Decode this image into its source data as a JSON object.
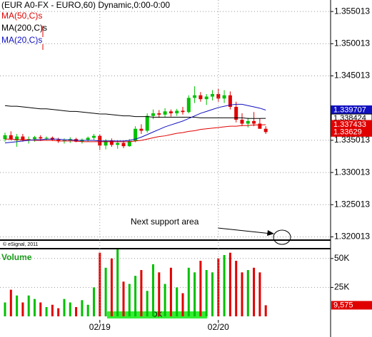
{
  "chart_data": [
    {
      "type": "candlestick",
      "title": "(EUR A0-FX - EURO,60) Dynamic,0:00-0:00",
      "up_color": "#00c000",
      "down_color": "#e00000",
      "open": [
        1.3352,
        1.3358,
        1.335,
        1.3356,
        1.335,
        1.3352,
        1.3355,
        1.3353,
        1.3354,
        1.3351,
        1.3349,
        1.335,
        1.3352,
        1.3348,
        1.3351,
        1.3354,
        1.3357,
        1.3342,
        1.335,
        1.3343,
        1.3346,
        1.3341,
        1.3349,
        1.3368,
        1.3365,
        1.3388,
        1.3392,
        1.339,
        1.3395,
        1.3392,
        1.3396,
        1.3394,
        1.3416,
        1.342,
        1.3414,
        1.3418,
        1.3422,
        1.3415,
        1.342,
        1.3402,
        1.3382,
        1.3376,
        1.338,
        1.3376,
        1.3368
      ],
      "high": [
        1.3362,
        1.3364,
        1.336,
        1.336,
        1.3356,
        1.3357,
        1.3358,
        1.3356,
        1.3356,
        1.3354,
        1.3353,
        1.3355,
        1.3354,
        1.3353,
        1.3356,
        1.336,
        1.3359,
        1.3352,
        1.3353,
        1.335,
        1.3349,
        1.3352,
        1.3372,
        1.3375,
        1.3392,
        1.3398,
        1.3397,
        1.34,
        1.3398,
        1.3399,
        1.3402,
        1.342,
        1.3434,
        1.3425,
        1.3422,
        1.3428,
        1.343,
        1.3428,
        1.3426,
        1.341,
        1.3392,
        1.3385,
        1.3394,
        1.3384,
        1.3372
      ],
      "low": [
        1.3348,
        1.335,
        1.334,
        1.3348,
        1.3345,
        1.3348,
        1.3349,
        1.335,
        1.3349,
        1.3346,
        1.3345,
        1.3346,
        1.3347,
        1.3345,
        1.3348,
        1.3351,
        1.3335,
        1.3336,
        1.334,
        1.3337,
        1.3338,
        1.334,
        1.3347,
        1.336,
        1.3362,
        1.3383,
        1.3385,
        1.3386,
        1.3387,
        1.3388,
        1.339,
        1.3392,
        1.3408,
        1.341,
        1.3405,
        1.3412,
        1.341,
        1.3408,
        1.3398,
        1.3378,
        1.3372,
        1.337,
        1.3372,
        1.337,
        1.336
      ],
      "close": [
        1.3358,
        1.3352,
        1.3356,
        1.335,
        1.3352,
        1.3355,
        1.3353,
        1.3354,
        1.3351,
        1.3349,
        1.335,
        1.3352,
        1.3348,
        1.3351,
        1.3354,
        1.3357,
        1.3342,
        1.335,
        1.3343,
        1.3346,
        1.3341,
        1.3349,
        1.3368,
        1.3365,
        1.3388,
        1.3392,
        1.339,
        1.3395,
        1.3392,
        1.3396,
        1.3394,
        1.3416,
        1.342,
        1.3414,
        1.3418,
        1.3422,
        1.3415,
        1.342,
        1.3402,
        1.3382,
        1.3376,
        1.338,
        1.3376,
        1.3368,
        1.33629
      ],
      "series": [
        {
          "name": "MA(50,C)s",
          "color": "#e00000",
          "values": [
            1.3352,
            1.3352,
            1.3351,
            1.3351,
            1.3351,
            1.335,
            1.335,
            1.335,
            1.335,
            1.3349,
            1.3349,
            1.3349,
            1.3349,
            1.3348,
            1.3348,
            1.3348,
            1.3348,
            1.3348,
            1.3348,
            1.3348,
            1.3348,
            1.3348,
            1.3349,
            1.335,
            1.3352,
            1.3354,
            1.3356,
            1.3357,
            1.3359,
            1.3361,
            1.3362,
            1.3364,
            1.3365,
            1.3367,
            1.3368,
            1.3369,
            1.337,
            1.3371,
            1.3372,
            1.3372,
            1.3373,
            1.3373,
            1.3374,
            1.3374,
            1.337433
          ]
        },
        {
          "name": "MA(200,C)s",
          "color": "#000000",
          "values": [
            1.3404,
            1.3403,
            1.3403,
            1.3402,
            1.3401,
            1.34,
            1.3399,
            1.3399,
            1.3398,
            1.3397,
            1.3396,
            1.3395,
            1.3395,
            1.3394,
            1.3393,
            1.3392,
            1.3391,
            1.3391,
            1.339,
            1.3389,
            1.3388,
            1.3388,
            1.3387,
            1.3387,
            1.3387,
            1.3386,
            1.3386,
            1.3386,
            1.3386,
            1.3386,
            1.3386,
            1.3386,
            1.3386,
            1.3385,
            1.3385,
            1.3385,
            1.3385,
            1.3385,
            1.3385,
            1.3385,
            1.3385,
            1.3384,
            1.3384,
            1.3384,
            1.338424
          ]
        },
        {
          "name": "MA(20,C)s",
          "color": "#1010c0",
          "values": [
            1.3346,
            1.3347,
            1.3348,
            1.3349,
            1.335,
            1.3351,
            1.3351,
            1.3352,
            1.3352,
            1.3352,
            1.3351,
            1.3351,
            1.335,
            1.335,
            1.335,
            1.335,
            1.3349,
            1.3349,
            1.3349,
            1.3349,
            1.3349,
            1.335,
            1.3352,
            1.3355,
            1.3359,
            1.3363,
            1.3367,
            1.3371,
            1.3374,
            1.3377,
            1.338,
            1.3384,
            1.3388,
            1.3392,
            1.3395,
            1.3398,
            1.3401,
            1.3403,
            1.3405,
            1.3406,
            1.3406,
            1.3404,
            1.3402,
            1.34,
            1.339707
          ]
        }
      ],
      "ylim": [
        1.3194,
        1.3568
      ],
      "yticks": [
        1.320013,
        1.325013,
        1.330013,
        1.335013,
        1.345013,
        1.350013,
        1.355013
      ],
      "grid": true,
      "annotation": "Next support area",
      "copyright": "© eSignal, 2011"
    },
    {
      "type": "bar",
      "title": "Volume",
      "categories": [
        null,
        null,
        null,
        null,
        null,
        null,
        null,
        null,
        null,
        null,
        null,
        null,
        null,
        null,
        null,
        null,
        "02/19",
        null,
        null,
        null,
        null,
        null,
        null,
        null,
        null,
        null,
        null,
        null,
        null,
        null,
        null,
        null,
        null,
        null,
        null,
        null,
        "02/20",
        null,
        null,
        null,
        null,
        null,
        null,
        null,
        null
      ],
      "values": [
        12000,
        23000,
        18000,
        12000,
        18000,
        15000,
        12000,
        8000,
        10000,
        7000,
        15000,
        12000,
        8000,
        14000,
        10000,
        25000,
        55000,
        42000,
        50000,
        58000,
        30000,
        28000,
        35000,
        40000,
        22000,
        45000,
        38000,
        28000,
        42000,
        25000,
        20000,
        42000,
        38000,
        48000,
        40000,
        38000,
        50000,
        53000,
        55000,
        48000,
        38000,
        40000,
        42000,
        38000,
        9575
      ],
      "value_labels": [
        null,
        null,
        null,
        null,
        null,
        null,
        null,
        null,
        null,
        null,
        null,
        null,
        null,
        null,
        null,
        null,
        null,
        null,
        null,
        null,
        null,
        null,
        null,
        null,
        null,
        null,
        null,
        null,
        null,
        null,
        null,
        null,
        null,
        null,
        null,
        null,
        null,
        null,
        null,
        null,
        null,
        null,
        null,
        null,
        "9,575"
      ],
      "ylim": [
        0,
        58500
      ],
      "yticks": [
        {
          "value": 25000,
          "label": "25K"
        },
        {
          "value": 50000,
          "label": "50K"
        }
      ],
      "grid": true,
      "status": "OK"
    }
  ]
}
